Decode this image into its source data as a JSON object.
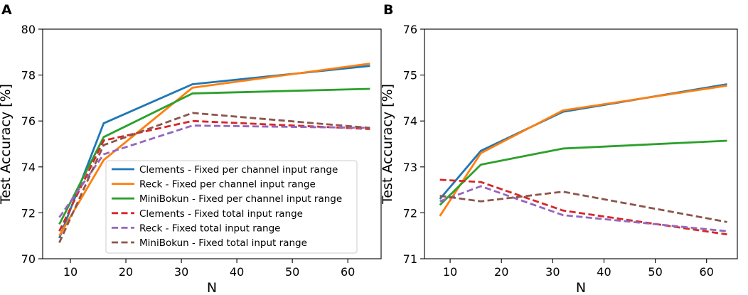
{
  "chart_data": [
    {
      "type": "line",
      "panel_label": "A",
      "xlabel": "N",
      "ylabel": "Test Accuracy [%]",
      "xlim": [
        5,
        66
      ],
      "ylim": [
        70,
        80
      ],
      "xticks": [
        10,
        20,
        30,
        40,
        50,
        60
      ],
      "yticks": [
        70,
        72,
        74,
        76,
        78,
        80
      ],
      "legend_position": "center-right",
      "x": [
        8,
        16,
        32,
        64
      ],
      "series": [
        {
          "name": "Clements - Fixed per channel input range",
          "color": "#1f77b4",
          "style": "solid",
          "values": [
            70.9,
            75.9,
            77.6,
            78.4
          ]
        },
        {
          "name": "Reck - Fixed per channel input range",
          "color": "#ff7f0e",
          "style": "solid",
          "values": [
            71.0,
            74.3,
            77.45,
            78.5
          ]
        },
        {
          "name": "MiniBokun - Fixed per channel input range",
          "color": "#2ca02c",
          "style": "solid",
          "values": [
            71.5,
            75.3,
            77.2,
            77.4
          ]
        },
        {
          "name": "Clements - Fixed total input range",
          "color": "#d62728",
          "style": "dashed",
          "values": [
            71.2,
            75.15,
            76.0,
            75.65
          ]
        },
        {
          "name": "Reck - Fixed total input range",
          "color": "#9467bd",
          "style": "dashed",
          "values": [
            71.8,
            74.55,
            75.8,
            75.7
          ]
        },
        {
          "name": "MiniBokun - Fixed total input range",
          "color": "#8c564b",
          "style": "dashed",
          "values": [
            70.7,
            74.95,
            76.35,
            75.7
          ]
        }
      ]
    },
    {
      "type": "line",
      "panel_label": "B",
      "xlabel": "N",
      "ylabel": "Test Accuracy [%]",
      "xlim": [
        5,
        66
      ],
      "ylim": [
        71,
        76
      ],
      "xticks": [
        10,
        20,
        30,
        40,
        50,
        60
      ],
      "yticks": [
        71,
        72,
        73,
        74,
        75,
        76
      ],
      "x": [
        8,
        16,
        32,
        64
      ],
      "series": [
        {
          "name": "Clements - Fixed per channel input range",
          "color": "#1f77b4",
          "style": "solid",
          "values": [
            72.3,
            73.35,
            74.2,
            74.8
          ]
        },
        {
          "name": "Reck - Fixed per channel input range",
          "color": "#ff7f0e",
          "style": "solid",
          "values": [
            71.93,
            73.3,
            74.23,
            74.77
          ]
        },
        {
          "name": "MiniBokun - Fixed per channel input range",
          "color": "#2ca02c",
          "style": "solid",
          "values": [
            72.17,
            73.05,
            73.4,
            73.57
          ]
        },
        {
          "name": "Clements - Fixed total input range",
          "color": "#d62728",
          "style": "dashed",
          "values": [
            72.72,
            72.67,
            72.05,
            71.53
          ]
        },
        {
          "name": "Reck - Fixed total input range",
          "color": "#9467bd",
          "style": "dashed",
          "values": [
            72.25,
            72.58,
            71.95,
            71.6
          ]
        },
        {
          "name": "MiniBokun - Fixed total input range",
          "color": "#8c564b",
          "style": "dashed",
          "values": [
            72.37,
            72.25,
            72.46,
            71.8
          ]
        }
      ]
    }
  ]
}
